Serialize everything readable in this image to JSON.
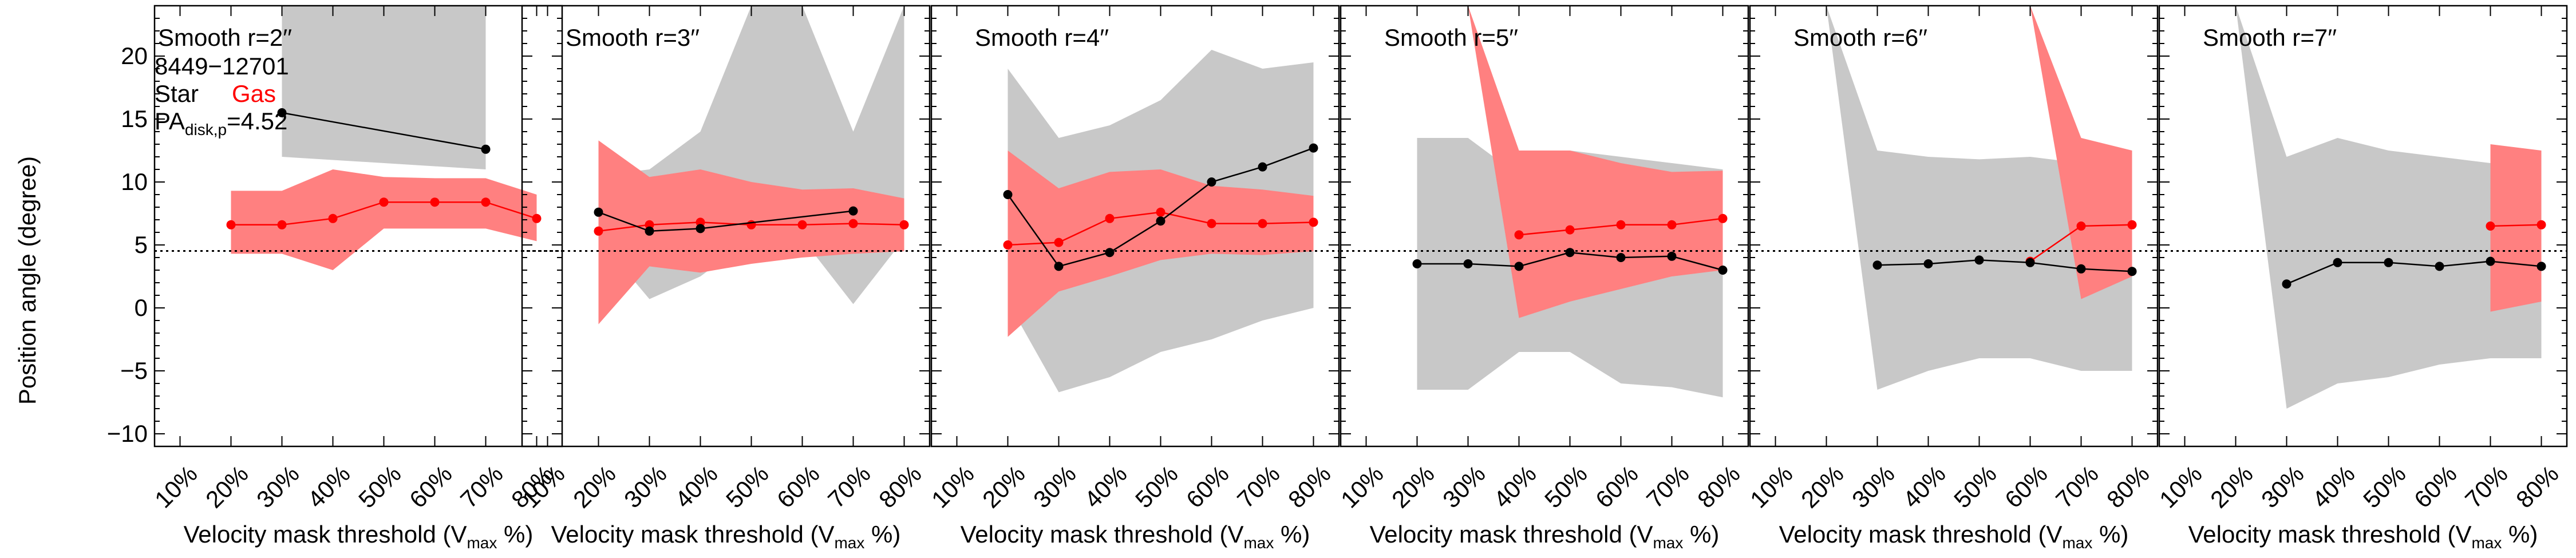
{
  "figure": {
    "ylabel": "Position angle (degree)",
    "xlabel_main": "Velocity mask threshold (V",
    "xlabel_sub": "max",
    "xlabel_end": " %)",
    "galaxy_id": "8449−12701",
    "legend_star": "Star",
    "legend_gas": "Gas",
    "pa_label_main": "PA",
    "pa_label_sub": "disk,p",
    "pa_label_value": "=4.52",
    "pa_disk": 4.52
  },
  "colors": {
    "star_line": "#000000",
    "gas_line": "#ff0000",
    "star_band": "#c8c8c8",
    "gas_band": "#ff8080",
    "reference_line": "#000000"
  },
  "chart_data": [
    {
      "type": "line",
      "title": "Smooth r=2′′",
      "x_categories": [
        "10%",
        "20%",
        "30%",
        "40%",
        "50%",
        "60%",
        "70%",
        "80%"
      ],
      "ylim": [
        -11,
        24
      ],
      "yticks": [
        -10,
        -5,
        0,
        5,
        10,
        15,
        20
      ],
      "series": [
        {
          "name": "Star",
          "x": [
            3,
            7
          ],
          "y": [
            15.5,
            12.6
          ],
          "band_x": [
            3,
            7
          ],
          "band_low": [
            12,
            11
          ],
          "band_high": [
            60,
            60
          ]
        },
        {
          "name": "Gas",
          "x": [
            2,
            3,
            4,
            5,
            6,
            7,
            8
          ],
          "y": [
            6.6,
            6.6,
            7.1,
            8.4,
            8.4,
            8.4,
            7.1
          ],
          "band_x": [
            2,
            3,
            4,
            5,
            6,
            7,
            8
          ],
          "band_low": [
            4.3,
            4.3,
            3.0,
            6.3,
            6.3,
            6.3,
            5.3
          ],
          "band_high": [
            9.3,
            9.3,
            11.0,
            10.4,
            10.3,
            10.3,
            9.0
          ]
        }
      ]
    },
    {
      "type": "line",
      "title": "Smooth r=3′′",
      "x_categories": [
        "10%",
        "20%",
        "30%",
        "40%",
        "50%",
        "60%",
        "70%",
        "80%"
      ],
      "ylim": [
        -11,
        24
      ],
      "series": [
        {
          "name": "Star",
          "x": [
            2,
            3,
            4,
            7
          ],
          "y": [
            7.6,
            6.1,
            6.3,
            7.7
          ],
          "band_x": [
            2,
            3,
            4,
            5,
            6,
            7,
            8
          ],
          "band_low": [
            5.5,
            0.7,
            2.5,
            5.5,
            5.5,
            0.3,
            5.5
          ],
          "band_high": [
            10.5,
            11.0,
            14.0,
            24,
            24,
            14.0,
            24
          ]
        },
        {
          "name": "Gas",
          "x": [
            2,
            3,
            4,
            5,
            6,
            7,
            8
          ],
          "y": [
            6.1,
            6.6,
            6.8,
            6.6,
            6.6,
            6.7,
            6.6
          ],
          "band_x": [
            2,
            3,
            4,
            5,
            6,
            7,
            8
          ],
          "band_low": [
            -1.3,
            3.3,
            2.8,
            3.5,
            4.0,
            4.3,
            4.5
          ],
          "band_high": [
            13.3,
            10.4,
            11.0,
            10.0,
            9.4,
            9.5,
            8.7
          ]
        }
      ]
    },
    {
      "type": "line",
      "title": "Smooth r=4′′",
      "x_categories": [
        "10%",
        "20%",
        "30%",
        "40%",
        "50%",
        "60%",
        "70%",
        "80%"
      ],
      "ylim": [
        -11,
        24
      ],
      "series": [
        {
          "name": "Star",
          "x": [
            2,
            3,
            4,
            5,
            6,
            7,
            8
          ],
          "y": [
            9.0,
            3.3,
            4.4,
            6.9,
            10.0,
            11.2,
            12.7
          ],
          "band_x": [
            2,
            3,
            4,
            5,
            6,
            7,
            8
          ],
          "band_low": [
            0.5,
            -6.7,
            -5.5,
            -3.5,
            -2.5,
            -1.0,
            0.0
          ],
          "band_high": [
            19.0,
            13.5,
            14.5,
            16.5,
            20.5,
            19.0,
            19.5
          ]
        },
        {
          "name": "Gas",
          "x": [
            2,
            3,
            4,
            5,
            6,
            7,
            8
          ],
          "y": [
            5.0,
            5.2,
            7.1,
            7.6,
            6.7,
            6.7,
            6.8
          ],
          "band_x": [
            2,
            3,
            4,
            5,
            6,
            7,
            8
          ],
          "band_low": [
            -2.3,
            1.3,
            2.5,
            3.8,
            4.3,
            4.2,
            4.5
          ],
          "band_high": [
            12.5,
            9.5,
            10.8,
            11.0,
            9.7,
            9.4,
            8.9
          ]
        }
      ]
    },
    {
      "type": "line",
      "title": "Smooth r=5′′",
      "x_categories": [
        "10%",
        "20%",
        "30%",
        "40%",
        "50%",
        "60%",
        "70%",
        "80%"
      ],
      "ylim": [
        -11,
        24
      ],
      "series": [
        {
          "name": "Star",
          "x": [
            2,
            3,
            4,
            5,
            6,
            7,
            8
          ],
          "y": [
            3.5,
            3.5,
            3.3,
            4.4,
            4.0,
            4.1,
            3.0
          ],
          "band_x": [
            2,
            3,
            4,
            5,
            6,
            7,
            8
          ],
          "band_low": [
            -6.5,
            -6.5,
            -3.5,
            -3.5,
            -6.0,
            -6.3,
            -7.1
          ],
          "band_high": [
            13.5,
            13.5,
            10.5,
            12.5,
            12.0,
            11.5,
            11.0
          ]
        },
        {
          "name": "Gas",
          "x": [
            4,
            5,
            6,
            7,
            8
          ],
          "y": [
            5.8,
            6.2,
            6.6,
            6.6,
            7.1
          ],
          "band_x": [
            3,
            4,
            5,
            6,
            7,
            8
          ],
          "band_low": [
            24,
            -0.8,
            0.5,
            1.5,
            2.5,
            3.0
          ],
          "band_high": [
            24,
            12.5,
            12.5,
            11.5,
            10.8,
            10.9
          ]
        }
      ]
    },
    {
      "type": "line",
      "title": "Smooth r=6′′",
      "x_categories": [
        "10%",
        "20%",
        "30%",
        "40%",
        "50%",
        "60%",
        "70%",
        "80%"
      ],
      "ylim": [
        -11,
        24
      ],
      "series": [
        {
          "name": "Star",
          "x": [
            3,
            4,
            5,
            6,
            7,
            8
          ],
          "y": [
            3.4,
            3.5,
            3.8,
            3.6,
            3.1,
            2.9
          ],
          "band_x": [
            2,
            3,
            4,
            5,
            6,
            7,
            8
          ],
          "band_low": [
            24,
            -6.5,
            -5.0,
            -4.0,
            -4.0,
            -5.0,
            -5.0
          ],
          "band_high": [
            24,
            12.5,
            12.0,
            11.8,
            12.0,
            11.5,
            11.0
          ]
        },
        {
          "name": "Gas",
          "x": [
            6,
            7,
            8
          ],
          "y": [
            3.7,
            6.5,
            6.6
          ],
          "band_x": [
            6,
            7,
            8
          ],
          "band_low": [
            24,
            0.7,
            2.5
          ],
          "band_high": [
            24,
            13.5,
            12.5
          ]
        }
      ]
    },
    {
      "type": "line",
      "title": "Smooth r=7′′",
      "x_categories": [
        "10%",
        "20%",
        "30%",
        "40%",
        "50%",
        "60%",
        "70%",
        "80%"
      ],
      "ylim": [
        -11,
        24
      ],
      "series": [
        {
          "name": "Star",
          "x": [
            3,
            4,
            5,
            6,
            7,
            8
          ],
          "y": [
            1.9,
            3.6,
            3.6,
            3.3,
            3.7,
            3.3
          ],
          "band_x": [
            2,
            3,
            4,
            5,
            6,
            7,
            8
          ],
          "band_low": [
            24,
            -8.0,
            -6.0,
            -5.5,
            -4.5,
            -4.0,
            -4.0
          ],
          "band_high": [
            24,
            12.0,
            13.5,
            12.5,
            12.0,
            11.5,
            11.0
          ]
        },
        {
          "name": "Gas",
          "x": [
            7,
            8
          ],
          "y": [
            6.5,
            6.6
          ],
          "band_x": [
            7,
            8
          ],
          "band_low": [
            -0.3,
            0.5
          ],
          "band_high": [
            13.0,
            12.5
          ]
        }
      ]
    }
  ]
}
